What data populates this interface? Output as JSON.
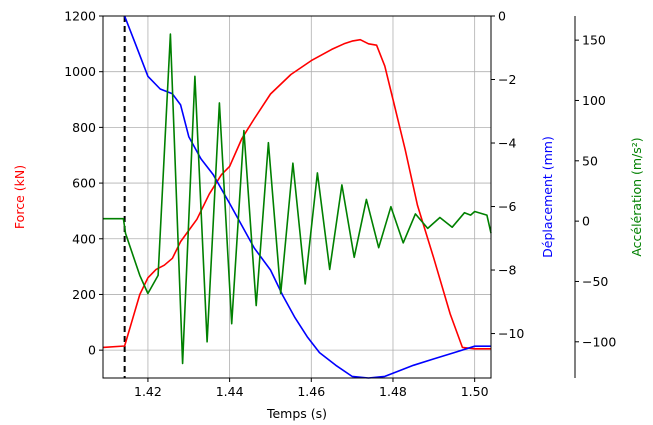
{
  "chart_data": {
    "type": "line",
    "x_label": "Temps (s)",
    "x_range": [
      1.409,
      1.504
    ],
    "x_ticks": [
      1.42,
      1.44,
      1.46,
      1.48,
      1.5
    ],
    "grid": true,
    "event_marker": {
      "x": 1.4143,
      "style": "dashed",
      "color": "#000000"
    },
    "axes": {
      "force": {
        "label": "Force (kN)",
        "side": "left",
        "color": "#ff0000",
        "range": [
          -100,
          1200
        ],
        "ticks": [
          0,
          200,
          400,
          600,
          800,
          1000,
          1200
        ]
      },
      "displacement": {
        "label": "Déplacement (mm)",
        "side": "right",
        "color": "#0000ff",
        "range": [
          -11.4,
          0
        ],
        "ticks": [
          0,
          -2,
          -4,
          -6,
          -8,
          -10
        ]
      },
      "acceleration": {
        "label": "Accélération (m/s²)",
        "side": "right-outer",
        "color": "#008000",
        "range": [
          -130,
          170
        ],
        "ticks": [
          150,
          100,
          50,
          0,
          -50,
          -100
        ]
      }
    },
    "series": [
      {
        "axis": "force",
        "color": "#ff0000",
        "x": [
          1.409,
          1.4143,
          1.416,
          1.418,
          1.42,
          1.422,
          1.424,
          1.426,
          1.428,
          1.43,
          1.432,
          1.435,
          1.438,
          1.44,
          1.443,
          1.446,
          1.45,
          1.455,
          1.46,
          1.465,
          1.468,
          1.47,
          1.472,
          1.474,
          1.476,
          1.478,
          1.48,
          1.483,
          1.486,
          1.49,
          1.494,
          1.497,
          1.5,
          1.504
        ],
        "y": [
          10,
          15,
          100,
          200,
          260,
          290,
          305,
          330,
          390,
          430,
          470,
          560,
          630,
          660,
          760,
          830,
          920,
          990,
          1040,
          1080,
          1100,
          1110,
          1115,
          1100,
          1095,
          1020,
          900,
          720,
          520,
          330,
          130,
          10,
          5,
          5
        ]
      },
      {
        "axis": "displacement",
        "color": "#0000ff",
        "x": [
          1.4143,
          1.417,
          1.42,
          1.423,
          1.426,
          1.428,
          1.43,
          1.433,
          1.436,
          1.44,
          1.443,
          1.446,
          1.45,
          1.453,
          1.456,
          1.459,
          1.462,
          1.466,
          1.47,
          1.474,
          1.478,
          1.481,
          1.485,
          1.49,
          1.495,
          1.5,
          1.504
        ],
        "y": [
          0,
          -0.9,
          -1.9,
          -2.3,
          -2.45,
          -2.8,
          -3.8,
          -4.5,
          -5.0,
          -5.9,
          -6.6,
          -7.3,
          -8.0,
          -8.8,
          -9.5,
          -10.1,
          -10.6,
          -11.0,
          -11.35,
          -11.4,
          -11.35,
          -11.2,
          -11.0,
          -10.8,
          -10.6,
          -10.4,
          -10.4
        ]
      },
      {
        "axis": "acceleration",
        "color": "#008000",
        "x": [
          1.409,
          1.414,
          1.4145,
          1.416,
          1.418,
          1.42,
          1.4225,
          1.4255,
          1.4285,
          1.4315,
          1.4345,
          1.4375,
          1.4405,
          1.4435,
          1.4465,
          1.4495,
          1.4525,
          1.4555,
          1.4585,
          1.4615,
          1.4645,
          1.4675,
          1.4705,
          1.4735,
          1.4765,
          1.4795,
          1.4825,
          1.4855,
          1.4885,
          1.4915,
          1.4945,
          1.4975,
          1.499,
          1.5,
          1.503,
          1.504
        ],
        "y": [
          2,
          2,
          -10,
          -25,
          -45,
          -60,
          -45,
          155,
          -118,
          120,
          -100,
          98,
          -85,
          75,
          -70,
          65,
          -60,
          48,
          -52,
          40,
          -40,
          30,
          -30,
          18,
          -22,
          12,
          -18,
          6,
          -6,
          3,
          -5,
          7,
          5,
          8,
          5,
          -10
        ]
      }
    ]
  }
}
